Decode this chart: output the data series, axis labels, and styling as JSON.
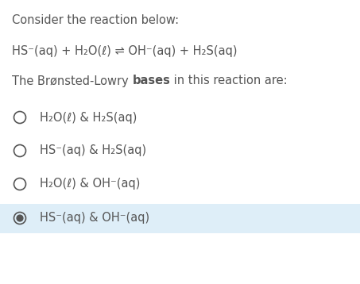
{
  "bg_color": "#ffffff",
  "selected_bg_color": "#deeef8",
  "text_color": "#555555",
  "radio_color": "#555555",
  "title": "Consider the reaction below:",
  "reaction": "HS⁻(aq) + H₂O(ℓ) ⇌ OH⁻(aq) + H₂S(aq)",
  "question_pre": "The Brønsted-Lowry ",
  "question_bold": "bases",
  "question_post": " in this reaction are:",
  "options": [
    "H₂O(ℓ) & H₂S(aq)",
    "HS⁻(aq) & H₂S(aq)",
    "H₂O(ℓ) & OH⁻(aq)",
    "HS⁻(aq) & OH⁻(aq)"
  ],
  "selected_index": 3,
  "font_size": 10.5,
  "font_size_bold": 10.5
}
